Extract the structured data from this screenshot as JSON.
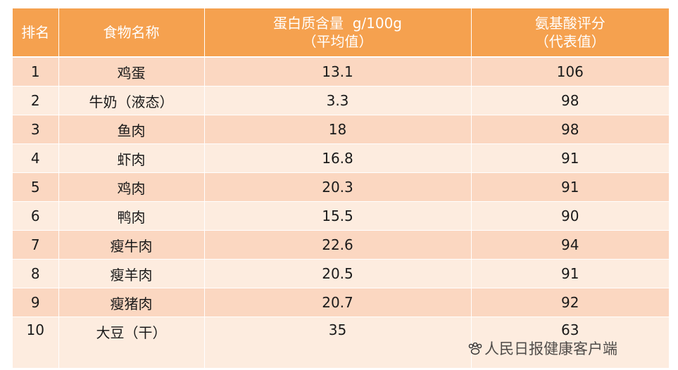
{
  "table": {
    "headers": [
      {
        "line1": "排名",
        "line2": ""
      },
      {
        "line1": "食物名称",
        "line2": ""
      },
      {
        "line1": "蛋白质含量  g/100g",
        "line2": "（平均值）"
      },
      {
        "line1": "氨基酸评分",
        "line2": "（代表值）"
      }
    ],
    "rows": [
      {
        "rank": "1",
        "food": "鸡蛋",
        "protein": "13.1",
        "score": "106"
      },
      {
        "rank": "2",
        "food": "牛奶（液态）",
        "protein": "3.3",
        "score": "98"
      },
      {
        "rank": "3",
        "food": "鱼肉",
        "protein": "18",
        "score": "98"
      },
      {
        "rank": "4",
        "food": "虾肉",
        "protein": "16.8",
        "score": "91"
      },
      {
        "rank": "5",
        "food": "鸡肉",
        "protein": "20.3",
        "score": "91"
      },
      {
        "rank": "6",
        "food": "鸭肉",
        "protein": "15.5",
        "score": "90"
      },
      {
        "rank": "7",
        "food": "瘦牛肉",
        "protein": "22.6",
        "score": "94"
      },
      {
        "rank": "8",
        "food": "瘦羊肉",
        "protein": "20.5",
        "score": "91"
      },
      {
        "rank": "9",
        "food": "瘦猪肉",
        "protein": "20.7",
        "score": "92"
      },
      {
        "rank": "10",
        "food": "大豆（干）",
        "protein": "35",
        "score": "63"
      }
    ]
  },
  "watermark": {
    "text": "人民日报健康客户端",
    "icon": "paw-icon"
  },
  "colors": {
    "header_bg": "#f5a14f",
    "row_dark": "#fbd7c1",
    "row_light": "#fdecdf"
  }
}
